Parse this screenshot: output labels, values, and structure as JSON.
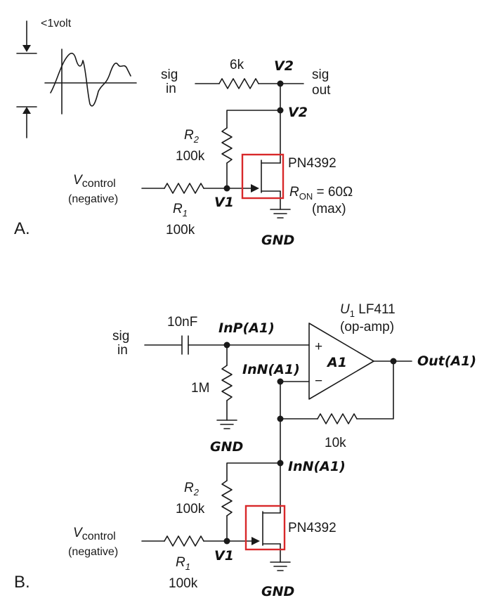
{
  "panel_a": {
    "label": "A.",
    "amplitude_label": "<1volt",
    "sig_in": [
      "sig",
      "in"
    ],
    "sig_out": [
      "sig",
      "out"
    ],
    "series_resistor": "6k",
    "node_v2_top": "V2",
    "node_v2_mid": "V2",
    "r2": {
      "name": "R",
      "sub": "2",
      "value": "100k"
    },
    "r1": {
      "name": "R",
      "sub": "1",
      "value": "100k"
    },
    "vcontrol": {
      "name": "V",
      "sub": "control",
      "note": "(negative)"
    },
    "node_v1": "V1",
    "fet": "PN4392",
    "ron": {
      "name": "R",
      "sub": "ON",
      "value": " = 60Ω",
      "note": "(max)"
    },
    "gnd": "GND"
  },
  "panel_b": {
    "label": "B.",
    "sig_in": [
      "sig",
      "in"
    ],
    "capacitor": "10nF",
    "node_inp": "InP(A1)",
    "op_amp": {
      "ref": "U",
      "ref_sub": "1",
      "part": " LF411",
      "type": "(op-amp)",
      "name": "A1",
      "plus": "+",
      "minus": "−"
    },
    "node_inn_top": "InN(A1)",
    "node_out": "Out(A1)",
    "bias_resistor": "1M",
    "gnd_bias": "GND",
    "feedback_resistor": "10k",
    "node_inn_mid": "InN(A1)",
    "r2": {
      "name": "R",
      "sub": "2",
      "value": "100k"
    },
    "r1": {
      "name": "R",
      "sub": "1",
      "value": "100k"
    },
    "vcontrol": {
      "name": "V",
      "sub": "control",
      "note": "(negative)"
    },
    "node_v1": "V1",
    "fet": "PN4392",
    "gnd": "GND"
  },
  "colors": {
    "wire": "#1a1a1a",
    "highlight": "#d8282a"
  }
}
